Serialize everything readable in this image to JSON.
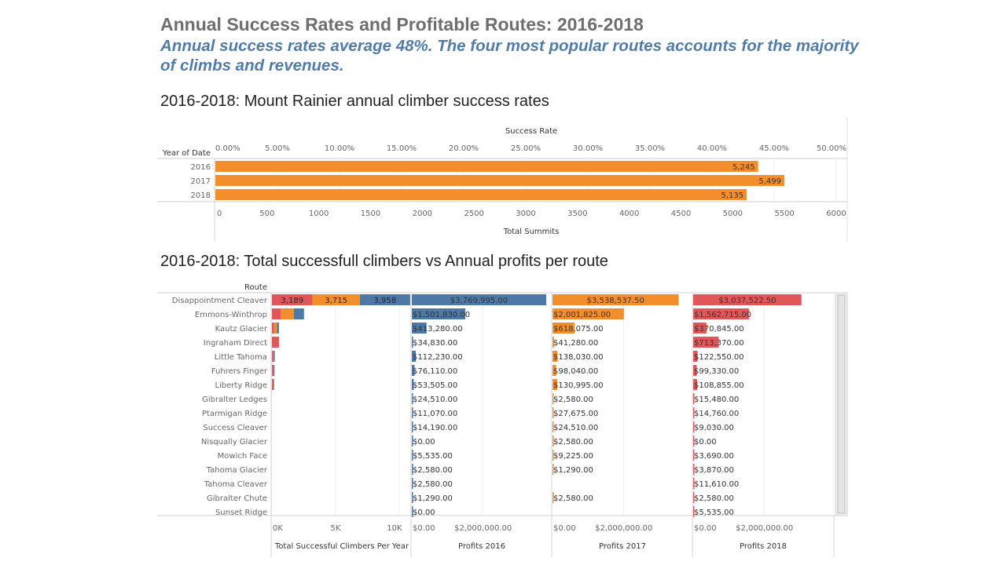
{
  "header": {
    "title": "Annual Success Rates and Profitable Routes: 2016-2018",
    "subtitle": "Annual success rates average 48%. The four most popular routes accounts for the majority of climbs and revenues."
  },
  "chart_data": [
    {
      "type": "bar",
      "orientation": "horizontal",
      "title": "2016-2018: Mount Rainier annual climber success rates",
      "row_header": "Year of Date",
      "top_axis_label": "Success Rate",
      "top_ticks": [
        "0.00%",
        "5.00%",
        "10.00%",
        "15.00%",
        "20.00%",
        "25.00%",
        "30.00%",
        "35.00%",
        "40.00%",
        "45.00%",
        "50.00%"
      ],
      "top_range": [
        0,
        50
      ],
      "xlabel": "Total Summits",
      "xlim": [
        0,
        6000
      ],
      "x_ticks": [
        "0",
        "500",
        "1000",
        "1500",
        "2000",
        "2500",
        "3000",
        "3500",
        "4000",
        "4500",
        "5000",
        "5500",
        "6000"
      ],
      "categories": [
        "2016",
        "2017",
        "2018"
      ],
      "success_rate": [
        47.5,
        48.0,
        47.4
      ],
      "values": [
        5245,
        5499,
        5135
      ],
      "value_labels": [
        "5,245",
        "5,499",
        "5,135"
      ],
      "color": "#f28e2b",
      "grid": true
    },
    {
      "type": "bar",
      "orientation": "horizontal",
      "title": "2016-2018: Total successfull climbers vs Annual profits per route",
      "row_header": "Route",
      "categories": [
        "Disappointment Cleaver",
        "Emmons-Winthrop",
        "Kautz Glacier",
        "Ingraham Direct",
        "Little Tahoma",
        "Fuhrers Finger",
        "Liberty Ridge",
        "Gibralter Ledges",
        "Ptarmigan Ridge",
        "Success Cleaver",
        "Nisqually Glacier",
        "Mowich Face",
        "Tahoma Glacier",
        "Tahoma Cleaver",
        "Gibralter Chute",
        "Sunset Ridge"
      ],
      "colors": {
        "2016": "#4e79a7",
        "2017": "#f28e2b",
        "2018": "#e15759"
      },
      "climbers": {
        "xlabel": "Total Successful Climbers Per Year",
        "xlim": [
          0,
          10500
        ],
        "x_ticks": [
          "0K",
          "5K",
          "10K"
        ],
        "series_2018": [
          3189,
          700,
          170,
          550,
          70,
          60,
          40,
          0,
          0,
          0,
          0,
          0,
          0,
          0,
          0,
          0
        ],
        "series_2017": [
          3715,
          1020,
          230,
          0,
          60,
          50,
          30,
          0,
          0,
          0,
          0,
          0,
          0,
          0,
          0,
          0
        ],
        "series_2016": [
          3958,
          800,
          150,
          0,
          20,
          20,
          20,
          0,
          0,
          0,
          0,
          0,
          0,
          0,
          0,
          0
        ],
        "labels_2018": "3,189",
        "labels_2017": "3,715",
        "labels_2016": "3,958"
      },
      "profits_2016": {
        "xlabel": "Profits 2016",
        "xlim": [
          0,
          4000000
        ],
        "x_ticks": [
          "$0.00",
          "$2,000,000.00"
        ],
        "values": [
          3769995,
          1501830,
          413280,
          34830,
          112230,
          76110,
          53505,
          24510,
          11070,
          14190,
          0,
          5535,
          2580,
          2580,
          1290,
          0
        ],
        "labels": [
          "$3,769,995.00",
          "$1,501,830.00",
          "$413,280.00",
          "$34,830.00",
          "$112,230.00",
          "$76,110.00",
          "$53,505.00",
          "$24,510.00",
          "$11,070.00",
          "$14,190.00",
          "$0.00",
          "$5,535.00",
          "$2,580.00",
          "$2,580.00",
          "$1,290.00",
          "$0.00"
        ]
      },
      "profits_2017": {
        "xlabel": "Profits 2017",
        "xlim": [
          0,
          4000000
        ],
        "x_ticks": [
          "$0.00",
          "$2,000,000.00"
        ],
        "values": [
          3538537.5,
          2001825,
          618075,
          41280,
          138030,
          98040,
          130995,
          2580,
          27675,
          24510,
          2580,
          9225,
          1290,
          null,
          2580,
          null
        ],
        "labels": [
          "$3,538,537.50",
          "$2,001,825.00",
          "$618,075.00",
          "$41,280.00",
          "$138,030.00",
          "$98,040.00",
          "$130,995.00",
          "$2,580.00",
          "$27,675.00",
          "$24,510.00",
          "$2,580.00",
          "$9,225.00",
          "$1,290.00",
          "",
          "$2,580.00",
          ""
        ]
      },
      "profits_2018": {
        "xlabel": "Profits 2018",
        "xlim": [
          0,
          4000000
        ],
        "x_ticks": [
          "$0.00",
          "$2,000,000.00"
        ],
        "values": [
          3037522.5,
          1562715,
          370845,
          713370,
          122550,
          99330,
          108855,
          15480,
          14760,
          9030,
          0,
          3690,
          3870,
          11610,
          2580,
          5535
        ],
        "labels": [
          "$3,037,522.50",
          "$1,562,715.00",
          "$370,845.00",
          "$713,370.00",
          "$122,550.00",
          "$99,330.00",
          "$108,855.00",
          "$15,480.00",
          "$14,760.00",
          "$9,030.00",
          "$0.00",
          "$3,690.00",
          "$3,870.00",
          "$11,610.00",
          "$2,580.00",
          "$5,535.00"
        ]
      }
    }
  ]
}
